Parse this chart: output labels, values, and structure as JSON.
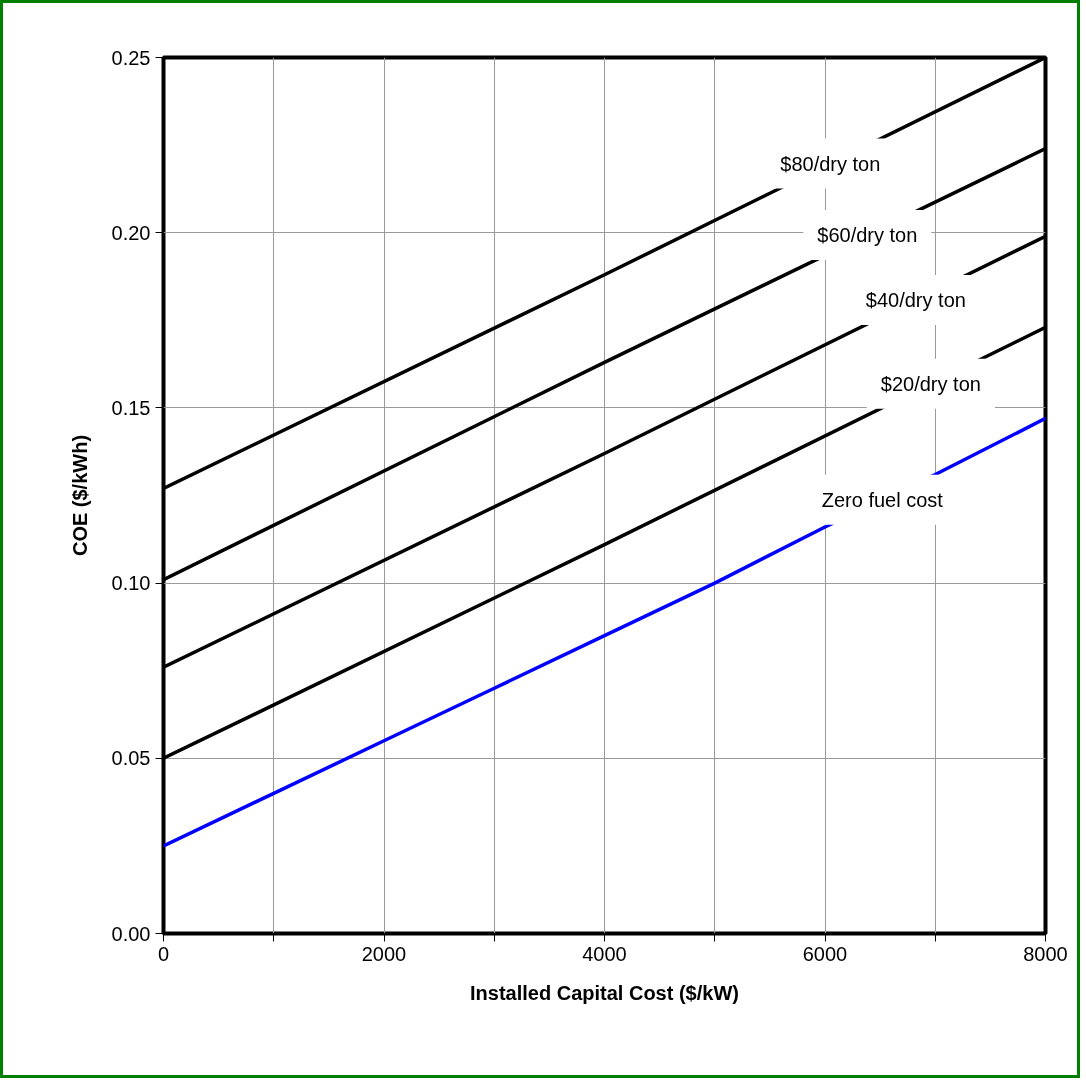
{
  "chart_data": {
    "type": "line",
    "xlabel": "Installed Capital Cost ($/kW)",
    "ylabel": "COE ($/kWh)",
    "xlim": [
      0,
      8000
    ],
    "ylim": [
      0,
      0.25
    ],
    "xticks": [
      0,
      {
        "value": 1000,
        "label": null
      },
      2000,
      {
        "value": 3000,
        "label": null
      },
      4000,
      {
        "value": 5000,
        "label": null
      },
      6000,
      {
        "value": 7000,
        "label": null
      },
      8000
    ],
    "yticks": [
      {
        "value": 0,
        "label": "0.00"
      },
      0.05,
      {
        "value": 0.1,
        "label": "0.10"
      },
      0.15,
      {
        "value": 0.2,
        "label": "0.20"
      },
      0.25
    ],
    "grid": true,
    "line_style": "solid",
    "marker": "none",
    "x": [
      0,
      4000,
      8000
    ],
    "series": [
      {
        "name": "$80/dry ton",
        "color": "#000000",
        "values": [
          0.127,
          0.188,
          0.25
        ]
      },
      {
        "name": "$60/dry ton",
        "color": "#000000",
        "values": [
          0.101,
          0.163,
          0.224
        ]
      },
      {
        "name": "$40/dry ton",
        "color": "#000000",
        "values": [
          0.076,
          0.137,
          0.199
        ]
      },
      {
        "name": "$20/dry ton",
        "color": "#000000",
        "values": [
          0.05,
          0.111,
          0.173
        ]
      },
      {
        "name": "Zero fuel cost",
        "color": "#0000ff",
        "x": [
          0,
          1000,
          2000,
          3000,
          4000,
          5000,
          6000,
          7000,
          8000
        ],
        "values": [
          0.025,
          0.04,
          0.055,
          0.07,
          0.085,
          0.1,
          0.116,
          0.131,
          0.147
        ]
      }
    ]
  }
}
